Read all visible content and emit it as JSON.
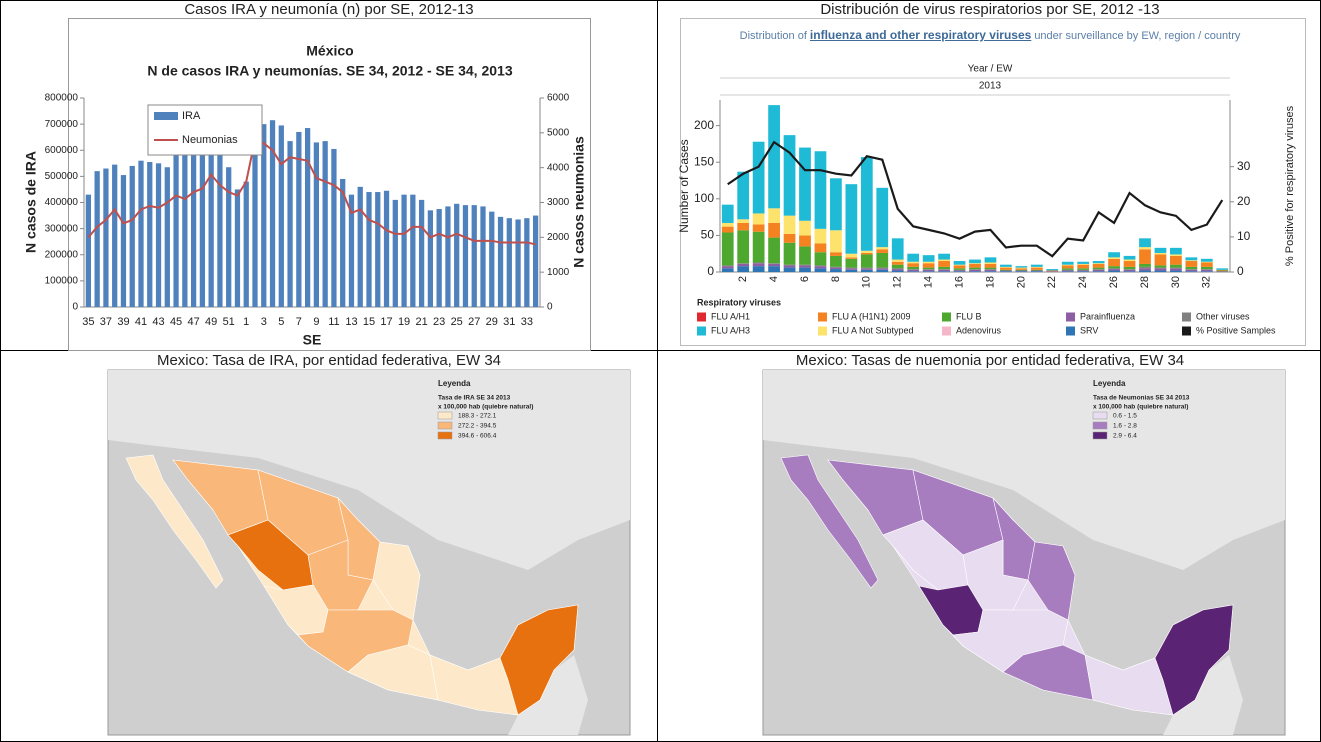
{
  "panels": [
    {
      "title": "Casos IRA y neumonía (n) por SE, 2012-13"
    },
    {
      "title": "Distribución de virus respiratorios por SE, 2012 -13"
    },
    {
      "title": "Mexico: Tasa de IRA, por entidad federativa, EW 34"
    },
    {
      "title": "Mexico: Tasas de nuemonia por entidad federativa, EW 34"
    }
  ],
  "chart_data": [
    {
      "type": "bar",
      "title": "México",
      "subtitle": "N de casos IRA y neumonías. SE 34, 2012 - SE 34, 2013",
      "xlabel": "SE",
      "ylabel": "N casos de IRA",
      "y2label": "N casos neumonias",
      "legend": "upper left",
      "categories": [
        "35",
        null,
        "37",
        null,
        "39",
        null,
        "41",
        null,
        "43",
        null,
        "45",
        null,
        "47",
        null,
        "49",
        null,
        "51",
        null,
        "1",
        null,
        "3",
        null,
        "5",
        null,
        "7",
        null,
        "9",
        null,
        "11",
        null,
        "13",
        null,
        "15",
        null,
        "17",
        null,
        "19",
        null,
        "21",
        null,
        "23",
        null,
        "25",
        null,
        "27",
        null,
        "29",
        null,
        "31",
        null,
        "33",
        null
      ],
      "series": [
        {
          "name": "IRA",
          "color": "#4f81bd",
          "values": [
            430000,
            520000,
            530000,
            545000,
            505000,
            540000,
            560000,
            555000,
            550000,
            535000,
            600000,
            590000,
            620000,
            600000,
            660000,
            605000,
            535000,
            450000,
            480000,
            600000,
            700000,
            715000,
            695000,
            635000,
            670000,
            685000,
            630000,
            635000,
            605000,
            490000,
            430000,
            460000,
            440000,
            440000,
            445000,
            410000,
            430000,
            430000,
            410000,
            370000,
            375000,
            385000,
            395000,
            390000,
            390000,
            385000,
            365000,
            345000,
            340000,
            335000,
            340000,
            350000
          ]
        },
        {
          "name": "Neumonias",
          "color": "#c0504d",
          "type": "line",
          "axis": "y2",
          "values": [
            2000,
            2300,
            2500,
            2800,
            2400,
            2500,
            2800,
            2900,
            2850,
            3000,
            3200,
            3100,
            3300,
            3400,
            3800,
            3500,
            3300,
            3200,
            3600,
            4800,
            4700,
            4500,
            4100,
            4300,
            4250,
            4200,
            3700,
            3600,
            3500,
            3300,
            2700,
            2800,
            2500,
            2400,
            2200,
            2100,
            2100,
            2300,
            2300,
            2000,
            2100,
            2000,
            2100,
            2000,
            1900,
            1900,
            1900,
            1850,
            1850,
            1850,
            1850,
            1800
          ]
        }
      ],
      "ylim": [
        0,
        800000
      ],
      "yticks": [
        0,
        100000,
        200000,
        300000,
        400000,
        500000,
        600000,
        700000,
        800000
      ],
      "y2lim": [
        0,
        6000
      ],
      "y2ticks": [
        0,
        1000,
        2000,
        3000,
        4000,
        5000,
        6000
      ]
    },
    {
      "type": "stacked_bar",
      "subtitle": [
        "Distribution of",
        "influenza and other respiratory viruses",
        "under surveillance by EW, region / country"
      ],
      "xgroup_label": "Year / EW",
      "year": "2013",
      "ylabel": "Number of Cases",
      "y2label": "% Positive for respiratory viruses",
      "legend_title": "Respiratory viruses",
      "categories": [
        null,
        "2",
        null,
        "4",
        null,
        "6",
        null,
        "8",
        null,
        "10",
        null,
        "12",
        null,
        "14",
        null,
        "16",
        null,
        "18",
        null,
        "20",
        null,
        "22",
        null,
        "24",
        null,
        "26",
        null,
        "28",
        null,
        "30",
        null,
        "32",
        null
      ],
      "series": [
        {
          "name": "SRV",
          "color": "#2e75b6",
          "values": [
            5,
            8,
            8,
            8,
            6,
            6,
            5,
            4,
            3,
            3,
            3,
            2,
            1,
            1,
            1,
            1,
            1,
            1,
            1,
            1,
            1,
            0,
            1,
            1,
            1,
            2,
            1,
            2,
            2,
            2,
            1,
            1,
            0
          ]
        },
        {
          "name": "Parainfluenza",
          "color": "#8e5ea2",
          "values": [
            3,
            3,
            4,
            3,
            3,
            3,
            3,
            2,
            2,
            2,
            2,
            2,
            2,
            2,
            2,
            1,
            2,
            2,
            1,
            1,
            1,
            1,
            1,
            1,
            2,
            2,
            2,
            3,
            3,
            3,
            2,
            2,
            1
          ]
        },
        {
          "name": "Other viruses",
          "color": "#808080",
          "values": [
            1,
            1,
            1,
            1,
            1,
            1,
            1,
            1,
            1,
            1,
            1,
            1,
            1,
            1,
            1,
            1,
            1,
            1,
            0,
            0,
            0,
            0,
            1,
            1,
            1,
            1,
            1,
            2,
            1,
            1,
            1,
            1,
            0
          ]
        },
        {
          "name": "FLU B",
          "color": "#4ea72e",
          "values": [
            45,
            45,
            42,
            35,
            30,
            25,
            18,
            15,
            12,
            18,
            20,
            5,
            3,
            2,
            3,
            2,
            2,
            2,
            1,
            1,
            1,
            0,
            2,
            2,
            2,
            3,
            3,
            4,
            3,
            4,
            3,
            3,
            1
          ]
        },
        {
          "name": "FLU A/H1",
          "color": "#e0282e",
          "values": [
            0,
            0,
            0,
            0,
            0,
            0,
            0,
            0,
            0,
            0,
            0,
            0,
            0,
            0,
            0,
            0,
            0,
            0,
            0,
            0,
            0,
            0,
            0,
            0,
            0,
            0,
            0,
            0,
            0,
            0,
            0,
            0,
            0
          ]
        },
        {
          "name": "FLU A (H1N1) 2009",
          "color": "#f58220",
          "values": [
            8,
            10,
            10,
            20,
            12,
            15,
            12,
            5,
            2,
            2,
            5,
            4,
            5,
            6,
            8,
            4,
            5,
            5,
            3,
            2,
            3,
            1,
            4,
            5,
            5,
            10,
            8,
            20,
            15,
            12,
            8,
            6,
            1
          ]
        },
        {
          "name": "FLU A Not Subtyped",
          "color": "#fde36b",
          "values": [
            5,
            5,
            15,
            20,
            25,
            20,
            20,
            30,
            5,
            3,
            3,
            3,
            2,
            2,
            2,
            1,
            1,
            2,
            1,
            1,
            1,
            0,
            1,
            1,
            1,
            2,
            2,
            3,
            2,
            2,
            1,
            1,
            0
          ]
        },
        {
          "name": "Adenovirus",
          "color": "#f4b6c8",
          "values": [
            0,
            0,
            0,
            0,
            0,
            0,
            0,
            0,
            0,
            0,
            0,
            0,
            0,
            0,
            0,
            0,
            0,
            0,
            0,
            0,
            0,
            0,
            0,
            0,
            0,
            0,
            0,
            0,
            0,
            0,
            0,
            0,
            0
          ]
        },
        {
          "name": "FLU A/H3",
          "color": "#1fbad6",
          "values": [
            25,
            65,
            98,
            141,
            110,
            100,
            106,
            71,
            95,
            128,
            81,
            29,
            11,
            9,
            8,
            5,
            5,
            7,
            3,
            2,
            3,
            2,
            4,
            3,
            3,
            7,
            5,
            12,
            7,
            9,
            4,
            4,
            2
          ]
        },
        {
          "name": "% Positive Samples",
          "color": "#1a1a1a",
          "type": "line",
          "axis": "y2",
          "values": [
            25,
            28,
            30,
            37,
            34,
            29,
            29,
            28,
            27.5,
            33,
            32,
            18,
            13,
            12,
            11,
            9.5,
            11.5,
            12,
            7,
            7.5,
            7.5,
            4.5,
            9.5,
            9,
            17,
            14,
            22.5,
            19,
            17,
            16,
            12,
            13.5,
            20.5
          ]
        }
      ],
      "ylim": [
        0,
        235
      ],
      "yticks": [
        0,
        50,
        100,
        150,
        200
      ],
      "y2lim": [
        0,
        49
      ],
      "y2ticks": [
        0,
        10,
        20,
        30
      ]
    }
  ],
  "maps": [
    {
      "legend_title": "Leyenda",
      "layer": "Tasa de IRA SE 34 2013",
      "unit": "x 100,000 hab (quiebre natural)",
      "classes": [
        {
          "label": "188.3 - 272.1",
          "color": "#fde9c9"
        },
        {
          "label": "272.2 - 394.5",
          "color": "#f9b77a"
        },
        {
          "label": "394.6 - 606.4",
          "color": "#e8710f"
        }
      ]
    },
    {
      "legend_title": "Leyenda",
      "layer": "Tasa de Neumonias SE 34 2013",
      "unit": "x 100,000 hab (quiebre natural)",
      "classes": [
        {
          "label": "0.6 - 1.5",
          "color": "#e8dcf0"
        },
        {
          "label": "1.6 - 2.8",
          "color": "#a77dc0"
        },
        {
          "label": "2.9 - 6.4",
          "color": "#5a2373"
        }
      ]
    }
  ]
}
